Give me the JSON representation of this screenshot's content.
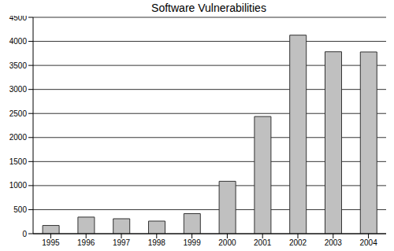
{
  "chart_data": {
    "type": "bar",
    "title": "Software Vulnerabilities",
    "categories": [
      "1995",
      "1996",
      "1997",
      "1998",
      "1999",
      "2000",
      "2001",
      "2002",
      "2003",
      "2004"
    ],
    "values": [
      171,
      345,
      311,
      262,
      417,
      1090,
      2437,
      4129,
      3784,
      3780
    ],
    "color": "#c0c0c0",
    "ylim": [
      0,
      4500
    ],
    "yticks": [
      0,
      500,
      1000,
      1500,
      2000,
      2500,
      3000,
      3500,
      4000,
      4500
    ],
    "grid": true
  }
}
